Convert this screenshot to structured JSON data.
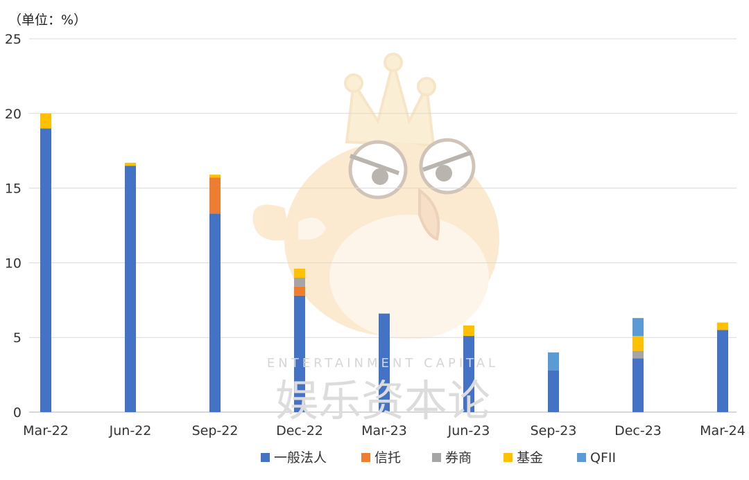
{
  "chart_data": {
    "type": "bar",
    "stacked": true,
    "unit_label": "（单位：%）",
    "categories": [
      "Mar-22",
      "Jun-22",
      "Sep-22",
      "Dec-22",
      "Mar-23",
      "Jun-23",
      "Sep-23",
      "Dec-23",
      "Mar-24"
    ],
    "series": [
      {
        "name": "一般法人",
        "color": "#4472C4",
        "values": [
          19.0,
          16.5,
          13.3,
          7.8,
          6.6,
          5.1,
          2.8,
          3.6,
          5.5
        ]
      },
      {
        "name": "信托",
        "color": "#ED7D31",
        "values": [
          0,
          0,
          2.4,
          0.6,
          0,
          0,
          0,
          0,
          0
        ]
      },
      {
        "name": "券商",
        "color": "#A5A5A5",
        "values": [
          0,
          0,
          0,
          0.6,
          0,
          0,
          0,
          0.5,
          0
        ]
      },
      {
        "name": "基金",
        "color": "#FFC000",
        "values": [
          1.0,
          0.2,
          0.2,
          0.6,
          0,
          0.7,
          0,
          1.0,
          0.5
        ]
      },
      {
        "name": "QFII",
        "color": "#5B9BD5",
        "values": [
          0,
          0,
          0,
          0,
          0,
          0,
          1.2,
          1.2,
          0
        ]
      }
    ],
    "ylim": [
      0,
      25
    ],
    "yticks": [
      0,
      5,
      10,
      15,
      20,
      25
    ],
    "grid": true,
    "legend_position": "bottom"
  },
  "watermark": {
    "latin_text": "ENTERTAINMENT CAPITAL",
    "cn_text": "娱乐资本论",
    "colors": {
      "body": "#f5c27a",
      "crown": "#f3d38a",
      "text": "#cfcfcf"
    }
  }
}
